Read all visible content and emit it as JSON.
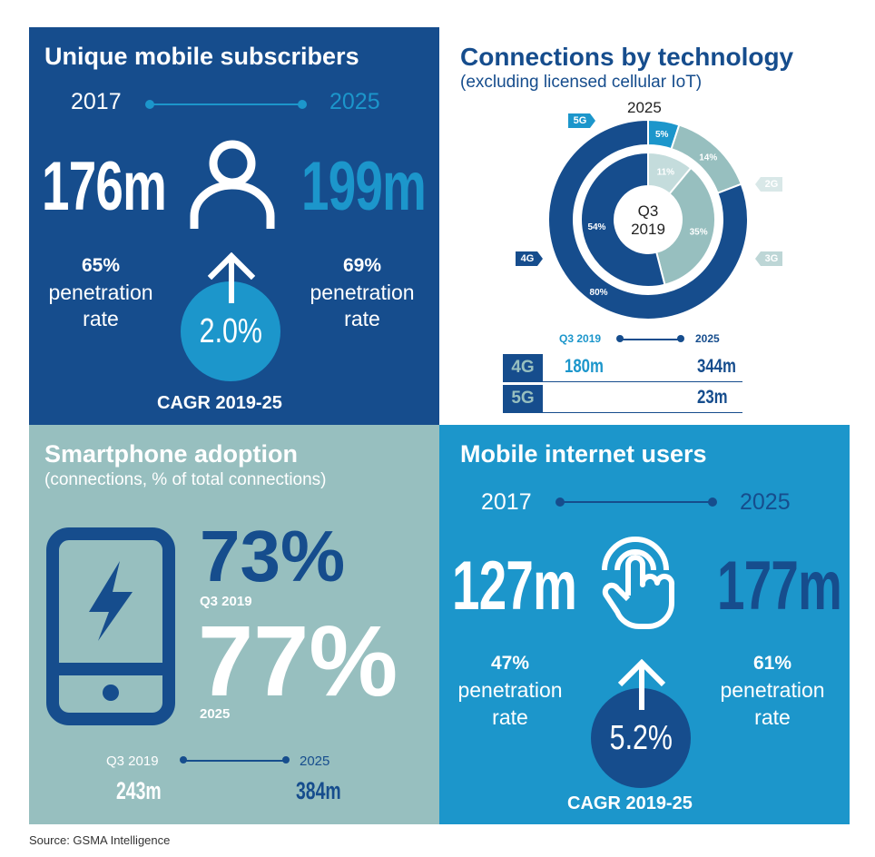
{
  "colors": {
    "dark_blue": "#164d8d",
    "light_blue": "#1c96cb",
    "teal": "#97bfbf",
    "pale_teal": "#c4dcdc",
    "white": "#ffffff"
  },
  "subscribers": {
    "title": "Unique mobile subscribers",
    "year_start": "2017",
    "year_end": "2025",
    "value_start": "176m",
    "value_end": "199m",
    "pct_start": "65%",
    "pct_end": "69%",
    "pen_label_line1": "penetration",
    "pen_label_line2": "rate",
    "cagr": "2.0%",
    "cagr_label": "CAGR 2019-25",
    "icon": "person-icon"
  },
  "connections": {
    "title": "Connections by technology",
    "subtitle": "(excluding licensed cellular IoT)",
    "outer_year": "2025",
    "inner_label_line1": "Q3",
    "inner_label_line2": "2019",
    "tag_5g": "5G",
    "tag_2g": "2G",
    "tag_3g": "3G",
    "tag_4g": "4G",
    "table_year_start": "Q3 2019",
    "table_year_end": "2025",
    "rows": [
      {
        "tech": "4G",
        "start": "180m",
        "end": "344m"
      },
      {
        "tech": "5G",
        "start": "",
        "end": "23m"
      }
    ]
  },
  "smartphone": {
    "title": "Smartphone adoption",
    "subtitle": "(connections, % of total connections)",
    "pct_q3": "73%",
    "label_q3": "Q3 2019",
    "pct_2025": "77%",
    "label_2025": "2025",
    "year_start": "Q3 2019",
    "year_end": "2025",
    "value_start": "243m",
    "value_end": "384m",
    "icon": "smartphone-icon"
  },
  "internet": {
    "title": "Mobile internet users",
    "year_start": "2017",
    "year_end": "2025",
    "value_start": "127m",
    "value_end": "177m",
    "pct_start": "47%",
    "pct_end": "61%",
    "pen_label_line1": "penetration",
    "pen_label_line2": "rate",
    "cagr": "5.2%",
    "cagr_label": "CAGR 2019-25",
    "icon": "touch-icon"
  },
  "source": "Source: GSMA Intelligence",
  "chart_data": {
    "type": "pie",
    "rings": [
      {
        "name": "2025",
        "categories": [
          "5G",
          "2G",
          "3G",
          "4G"
        ],
        "values": [
          5,
          14,
          0,
          80
        ],
        "labels": [
          "5%",
          "14%",
          "",
          "80%"
        ],
        "colors": [
          "#1c96cb",
          "#97bfbf",
          "#97bfbf",
          "#164d8d"
        ]
      },
      {
        "name": "Q3 2019",
        "categories": [
          "2G",
          "3G",
          "4G"
        ],
        "values": [
          11,
          35,
          54
        ],
        "labels": [
          "11%",
          "35%",
          "54%"
        ],
        "colors": [
          "#c4dcdc",
          "#97bfbf",
          "#164d8d"
        ]
      }
    ]
  }
}
